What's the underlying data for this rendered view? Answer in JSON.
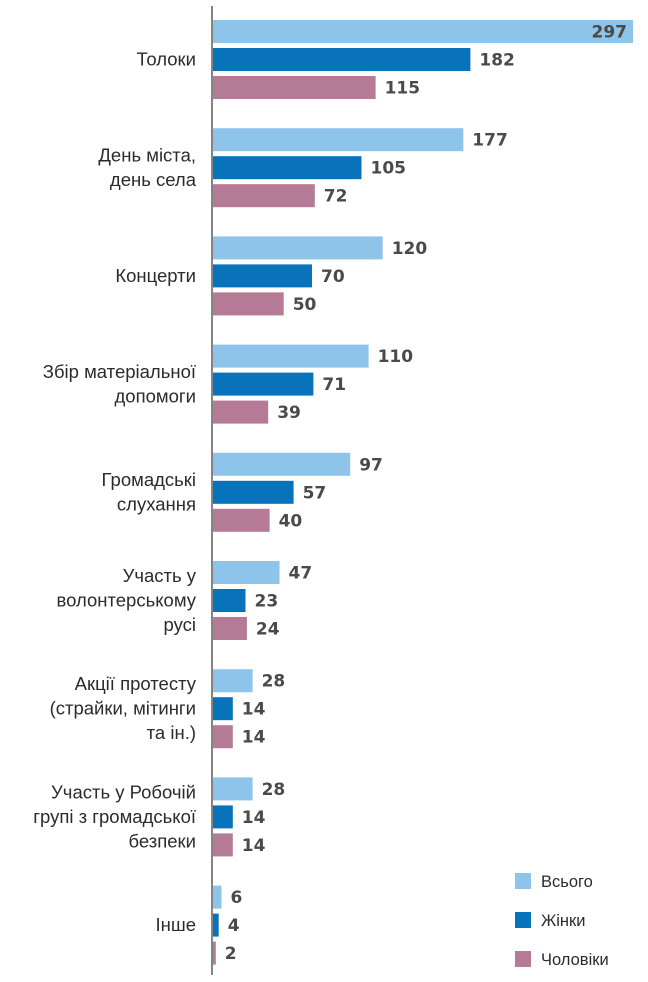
{
  "chart_data": {
    "type": "bar",
    "orientation": "horizontal",
    "categories": [
      [
        "Толоки"
      ],
      [
        "День міста,",
        "день села"
      ],
      [
        "Концерти"
      ],
      [
        "Збір матеріальної",
        "допомоги"
      ],
      [
        "Громадські",
        "слухання"
      ],
      [
        "Участь у",
        "волонтерському",
        "русі"
      ],
      [
        "Акції протесту",
        "(страйки, мітинги",
        "та ін.)"
      ],
      [
        "Участь у Робочій",
        "групі з громадської",
        "безпеки"
      ],
      [
        "Інше"
      ]
    ],
    "series": [
      {
        "name": "Всього",
        "color": "#8ec3ea",
        "values": [
          297,
          177,
          120,
          110,
          97,
          47,
          28,
          28,
          6
        ]
      },
      {
        "name": "Жінки",
        "color": "#0873bb",
        "values": [
          182,
          105,
          70,
          71,
          57,
          23,
          14,
          14,
          4
        ]
      },
      {
        "name": "Чоловіки",
        "color": "#b57a96",
        "values": [
          115,
          72,
          50,
          39,
          40,
          24,
          14,
          14,
          2
        ]
      }
    ],
    "title": "",
    "xlabel": "",
    "ylabel": "",
    "xlim": [
      0,
      297
    ],
    "grid": false,
    "legend_position": "bottom-right",
    "value_labels": true
  }
}
